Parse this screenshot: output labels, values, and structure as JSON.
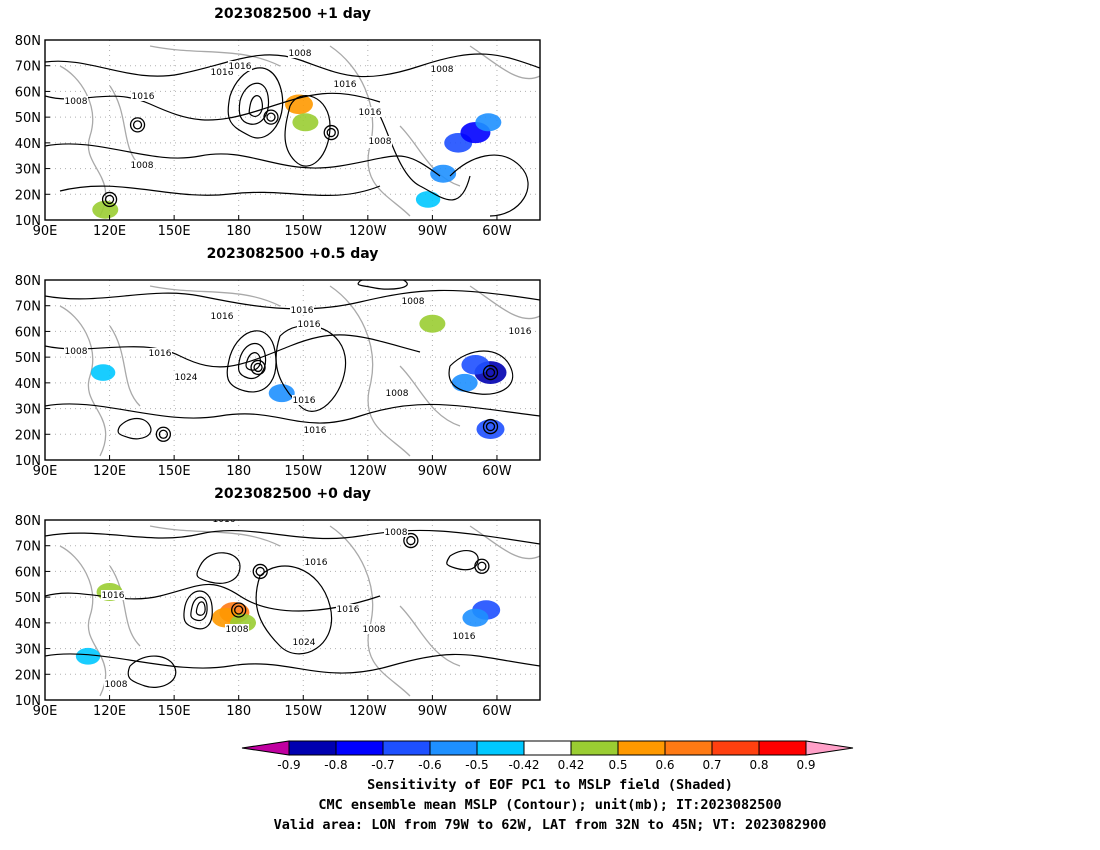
{
  "panels": [
    {
      "title": "2023082500  +1 day",
      "isobar_labels": [
        "1008",
        "1008",
        "1016",
        "1016",
        "1008",
        "1008",
        "1016",
        "1016",
        "1008",
        "1016",
        "1008"
      ],
      "sensitivity_blobs": [
        {
          "lon": 282,
          "lat": 40,
          "value": -0.6
        },
        {
          "lon": 290,
          "lat": 44,
          "value": -0.7
        },
        {
          "lon": 296,
          "lat": 48,
          "value": -0.5
        },
        {
          "lon": 275,
          "lat": 28,
          "value": -0.5
        },
        {
          "lon": 268,
          "lat": 18,
          "value": -0.42
        },
        {
          "lon": 208,
          "lat": 55,
          "value": 0.6
        },
        {
          "lon": 211,
          "lat": 48,
          "value": 0.5
        },
        {
          "lon": 118,
          "lat": 14,
          "value": 0.5
        }
      ],
      "lows": [
        {
          "lon": 195,
          "lat": 50
        },
        {
          "lon": 223,
          "lat": 44
        },
        {
          "lon": 120,
          "lat": 18
        },
        {
          "lon": 133,
          "lat": 47
        }
      ]
    },
    {
      "title": "2023082500  +0.5 day",
      "isobar_labels": [
        "1008",
        "1016",
        "1016",
        "1016",
        "1008",
        "1016",
        "1024",
        "1016",
        "1016",
        "1008",
        "1016"
      ],
      "sensitivity_blobs": [
        {
          "lon": 297,
          "lat": 44,
          "value": -0.8
        },
        {
          "lon": 290,
          "lat": 47,
          "value": -0.6
        },
        {
          "lon": 285,
          "lat": 40,
          "value": -0.5
        },
        {
          "lon": 297,
          "lat": 22,
          "value": -0.6
        },
        {
          "lon": 200,
          "lat": 36,
          "value": -0.5
        },
        {
          "lon": 117,
          "lat": 44,
          "value": -0.42
        },
        {
          "lon": 270,
          "lat": 63,
          "value": 0.5
        }
      ],
      "lows": [
        {
          "lon": 189,
          "lat": 46
        },
        {
          "lon": 297,
          "lat": 44
        },
        {
          "lon": 297,
          "lat": 23
        },
        {
          "lon": 145,
          "lat": 20
        }
      ]
    },
    {
      "title": "2023082500  +0 day",
      "isobar_labels": [
        "1016",
        "1008",
        "1016",
        "1016",
        "1016",
        "1008",
        "1024",
        "1008",
        "1016",
        "1008"
      ],
      "sensitivity_blobs": [
        {
          "lon": 178,
          "lat": 44,
          "value": 0.7
        },
        {
          "lon": 174,
          "lat": 42,
          "value": 0.6
        },
        {
          "lon": 182,
          "lat": 40,
          "value": 0.5
        },
        {
          "lon": 120,
          "lat": 52,
          "value": 0.5
        },
        {
          "lon": 295,
          "lat": 45,
          "value": -0.6
        },
        {
          "lon": 290,
          "lat": 42,
          "value": -0.5
        },
        {
          "lon": 110,
          "lat": 27,
          "value": -0.42
        }
      ],
      "lows": [
        {
          "lon": 180,
          "lat": 45
        },
        {
          "lon": 190,
          "lat": 60
        },
        {
          "lon": 293,
          "lat": 62
        },
        {
          "lon": 260,
          "lat": 72
        }
      ]
    }
  ],
  "axes": {
    "lat_labels": [
      "80N",
      "70N",
      "60N",
      "50N",
      "40N",
      "30N",
      "20N",
      "10N"
    ],
    "lon_labels": [
      "90E",
      "120E",
      "150E",
      "180",
      "150W",
      "120W",
      "90W",
      "60W"
    ],
    "lon_range": [
      90,
      320
    ],
    "lat_range": [
      10,
      80
    ]
  },
  "colorbar": {
    "tick_labels": [
      "-0.9",
      "-0.8",
      "-0.7",
      "-0.6",
      "-0.5",
      "-0.42",
      "0.42",
      "0.5",
      "0.6",
      "0.7",
      "0.8",
      "0.9"
    ],
    "colors": [
      "#c000a0",
      "#0000b0",
      "#0000ff",
      "#1e50ff",
      "#1e90ff",
      "#00c8ff",
      "#ffffff",
      "#9acd32",
      "#ff9900",
      "#ff7a14",
      "#ff4010",
      "#ff0000",
      "#ffa0c8"
    ]
  },
  "captions": {
    "line1": "Sensitivity of EOF PC1 to MSLP field (Shaded)",
    "line2": "CMC ensemble mean MSLP (Contour); unit(mb); IT:2023082500",
    "line3": "Valid area: LON from 79W to 62W, LAT from 32N to 45N; VT: 2023082900"
  }
}
